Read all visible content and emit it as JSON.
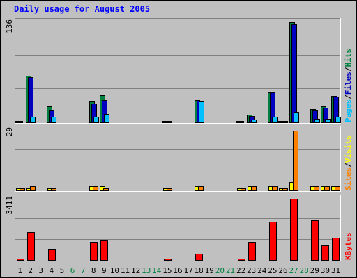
{
  "chart_data": {
    "type": "bar",
    "title": "Daily usage for August 2005",
    "x_label_type": "day of month",
    "days": [
      1,
      2,
      3,
      4,
      5,
      6,
      7,
      8,
      9,
      10,
      11,
      12,
      13,
      14,
      15,
      16,
      17,
      18,
      19,
      20,
      21,
      22,
      23,
      24,
      25,
      26,
      27,
      28,
      29,
      30,
      31
    ],
    "weekend_days": [
      6,
      7,
      13,
      14,
      20,
      21,
      27,
      28
    ],
    "panels": [
      {
        "id": "hits",
        "max_label": "136",
        "max": 136,
        "legend": [
          {
            "label": "Pages",
            "color": "#00c0ff"
          },
          {
            "label": "/",
            "color": "#000000"
          },
          {
            "label": "Files",
            "color": "#0000c0"
          },
          {
            "label": "/",
            "color": "#000000"
          },
          {
            "label": "Hits",
            "color": "#008040"
          }
        ],
        "series": [
          {
            "name": "Hits",
            "color": "#008040",
            "values": [
              1,
              62,
              0,
              21,
              0,
              0,
              0,
              28,
              36,
              0,
              0,
              0,
              0,
              0,
              1,
              0,
              0,
              30,
              0,
              0,
              0,
              1,
              10,
              0,
              40,
              1,
              134,
              0,
              18,
              21,
              35
            ]
          },
          {
            "name": "Files",
            "color": "#0000c0",
            "values": [
              1,
              61,
              0,
              17,
              0,
              0,
              0,
              25,
              30,
              0,
              0,
              0,
              0,
              0,
              0,
              0,
              0,
              29,
              0,
              0,
              0,
              1,
              8,
              0,
              40,
              0,
              131,
              0,
              17,
              20,
              34
            ]
          },
          {
            "name": "Pages",
            "color": "#00c0ff",
            "values": [
              0,
              7,
              0,
              7,
              0,
              0,
              0,
              7,
              11,
              0,
              0,
              0,
              0,
              0,
              1,
              0,
              0,
              28,
              0,
              0,
              0,
              0,
              4,
              0,
              7,
              1,
              14,
              0,
              5,
              5,
              7
            ]
          }
        ]
      },
      {
        "id": "visits",
        "max_label": "29",
        "max": 29,
        "legend": [
          {
            "label": "Sites",
            "color": "#ff8000"
          },
          {
            "label": "/",
            "color": "#000000"
          },
          {
            "label": "Visits",
            "color": "#ffff00"
          }
        ],
        "series": [
          {
            "name": "Visits",
            "color": "#ffff00",
            "values": [
              1,
              1,
              0,
              1,
              0,
              0,
              0,
              2,
              2,
              0,
              0,
              0,
              0,
              0,
              1,
              0,
              0,
              2,
              0,
              0,
              0,
              1,
              2,
              0,
              2,
              1,
              4,
              0,
              2,
              2,
              2
            ]
          },
          {
            "name": "Sites",
            "color": "#ff8000",
            "values": [
              1,
              2,
              0,
              1,
              0,
              0,
              0,
              2,
              1,
              0,
              0,
              0,
              0,
              0,
              1,
              0,
              0,
              2,
              0,
              0,
              0,
              1,
              2,
              0,
              2,
              1,
              28,
              0,
              2,
              2,
              2
            ]
          }
        ]
      },
      {
        "id": "kbytes",
        "max_label": "3411",
        "max": 3411,
        "legend": [
          {
            "label": "KBytes",
            "color": "#ff0000"
          }
        ],
        "series": [
          {
            "name": "KBytes",
            "color": "#ff0000",
            "values": [
              30,
              1500,
              0,
              620,
              0,
              0,
              0,
              980,
              1060,
              0,
              0,
              0,
              0,
              0,
              40,
              0,
              0,
              350,
              0,
              0,
              0,
              30,
              1000,
              0,
              2100,
              0,
              3330,
              0,
              2150,
              800,
              1230
            ]
          }
        ]
      }
    ]
  }
}
